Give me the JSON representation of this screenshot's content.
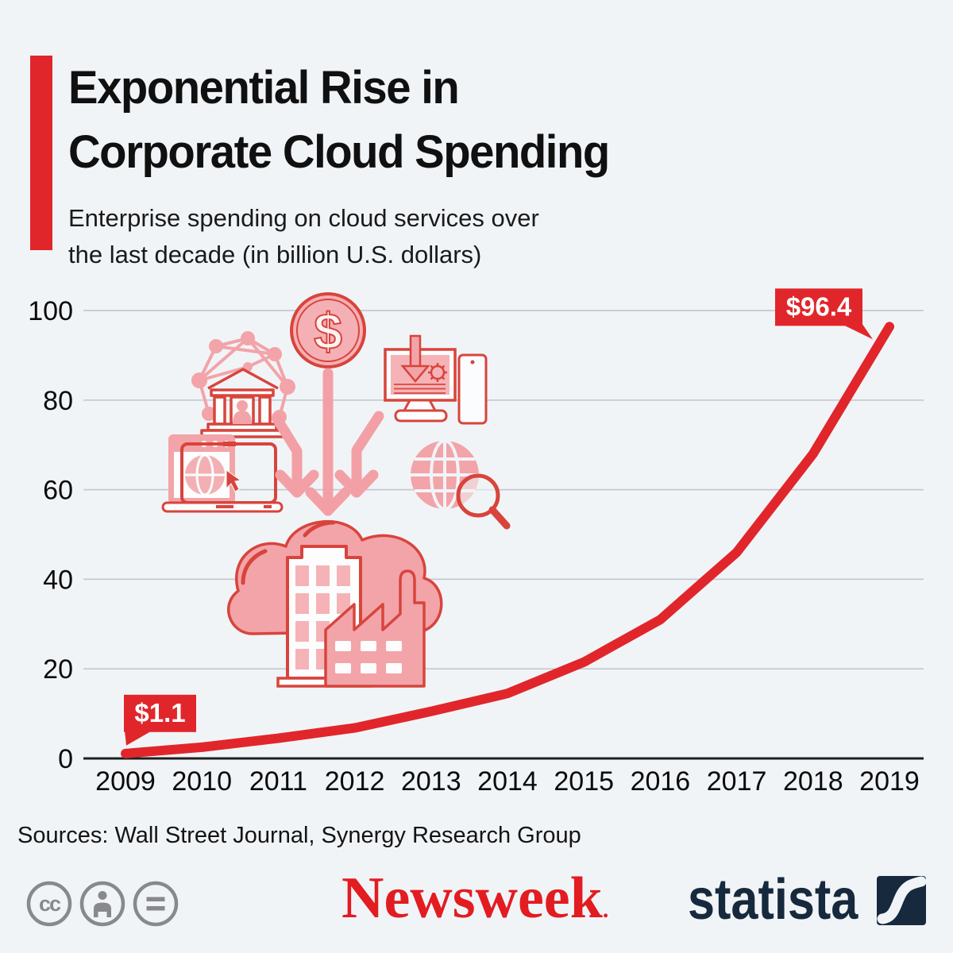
{
  "header": {
    "title": "Exponential Rise in\nCorporate Cloud Spending",
    "subtitle": "Enterprise spending on cloud services over\nthe last decade (in billion U.S. dollars)",
    "accent_color": "#e1262b"
  },
  "chart_data": {
    "type": "line",
    "title": "Exponential Rise in Corporate Cloud Spending",
    "subtitle": "Enterprise spending on cloud services over the last decade (in billion U.S. dollars)",
    "categories": [
      "2009",
      "2010",
      "2011",
      "2012",
      "2013",
      "2014",
      "2015",
      "2016",
      "2017",
      "2018",
      "2019"
    ],
    "values": [
      1.1,
      2.5,
      4.5,
      6.8,
      10.5,
      14.5,
      21.5,
      31,
      46,
      68,
      96.4
    ],
    "yticks": [
      0,
      20,
      40,
      60,
      80,
      100
    ],
    "ylim": [
      0,
      100
    ],
    "grid": true,
    "legend": "none",
    "line_color": "#e1262b",
    "callouts": [
      {
        "index": 0,
        "label": "$1.1"
      },
      {
        "index": 10,
        "label": "$96.4"
      }
    ]
  },
  "icons": {
    "dollar_glyph": "$",
    "decorative": [
      "network-institution-icon",
      "dollar-coin-icon",
      "desktop-download-icon",
      "browser-laptop-icon",
      "globe-search-icon",
      "download-arrows-icon",
      "cloud-industry-icon"
    ],
    "pink": "#f2a4a9",
    "outline_red": "#d8443c"
  },
  "sources": {
    "text": "Sources: Wall Street Journal, Synergy Research Group"
  },
  "footer": {
    "license_icons": [
      "cc-icon",
      "attribution-person-icon",
      "equals-icon"
    ],
    "cc_text": "cc",
    "newsweek_logo_text": "Newsweek",
    "newsweek_suffix": ".",
    "newsweek_color": "#e21c21",
    "statista_logo_text": "statista",
    "statista_color": "#17293d"
  }
}
